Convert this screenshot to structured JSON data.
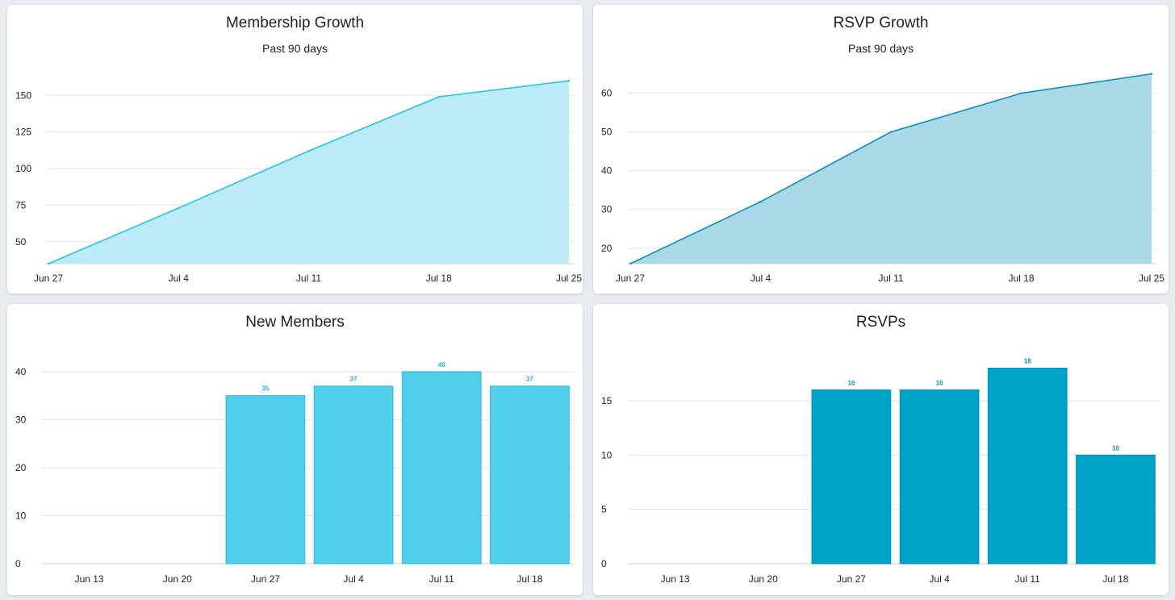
{
  "chart_data": [
    {
      "type": "area",
      "title": "Membership Growth",
      "subtitle": "Past 90 days",
      "x": [
        "Jun 27",
        "Jul 4",
        "Jul 11",
        "Jul 18",
        "Jul 25"
      ],
      "values": [
        35,
        73,
        112,
        149,
        160
      ],
      "xlabel": "",
      "ylabel": "",
      "ylim": [
        35,
        170
      ],
      "yticks": [
        50,
        75,
        100,
        125,
        150
      ],
      "grid": true,
      "colors": {
        "line": "#26c6e0",
        "fill": "#bcebf7"
      }
    },
    {
      "type": "area",
      "title": "RSVP Growth",
      "subtitle": "Past 90 days",
      "x": [
        "Jun 27",
        "Jul 4",
        "Jul 11",
        "Jul 18",
        "Jul 25"
      ],
      "values": [
        16,
        32,
        50,
        60,
        65
      ],
      "xlabel": "",
      "ylabel": "",
      "ylim": [
        16,
        67
      ],
      "yticks": [
        20,
        30,
        40,
        50,
        60
      ],
      "grid": true,
      "colors": {
        "line": "#0e8fba",
        "fill": "#a9d8e7"
      }
    },
    {
      "type": "bar",
      "title": "New Members",
      "categories": [
        "Jun 13",
        "Jun 20",
        "Jun 27",
        "Jul 4",
        "Jul 11",
        "Jul 18"
      ],
      "values": [
        0,
        0,
        35,
        37,
        40,
        37
      ],
      "data_labels": [
        "",
        "",
        "35",
        "37",
        "40",
        "37"
      ],
      "xlabel": "",
      "ylabel": "",
      "ylim": [
        0,
        43
      ],
      "yticks": [
        0,
        10,
        20,
        30,
        40
      ],
      "grid": true,
      "colors": {
        "bar": "#4fcfec",
        "border": "#30b8da",
        "label": "#26b3d6"
      }
    },
    {
      "type": "bar",
      "title": "RSVPs",
      "categories": [
        "Jun 13",
        "Jun 20",
        "Jun 27",
        "Jul 4",
        "Jul 11",
        "Jul 18"
      ],
      "values": [
        0,
        0,
        16,
        16,
        18,
        10
      ],
      "data_labels": [
        "",
        "",
        "16",
        "16",
        "18",
        "10"
      ],
      "xlabel": "",
      "ylabel": "",
      "ylim": [
        0,
        19
      ],
      "yticks": [
        0,
        5,
        10,
        15
      ],
      "grid": true,
      "colors": {
        "bar": "#00a3c8",
        "border": "#0090b3",
        "label": "#0a8fb5"
      }
    }
  ]
}
